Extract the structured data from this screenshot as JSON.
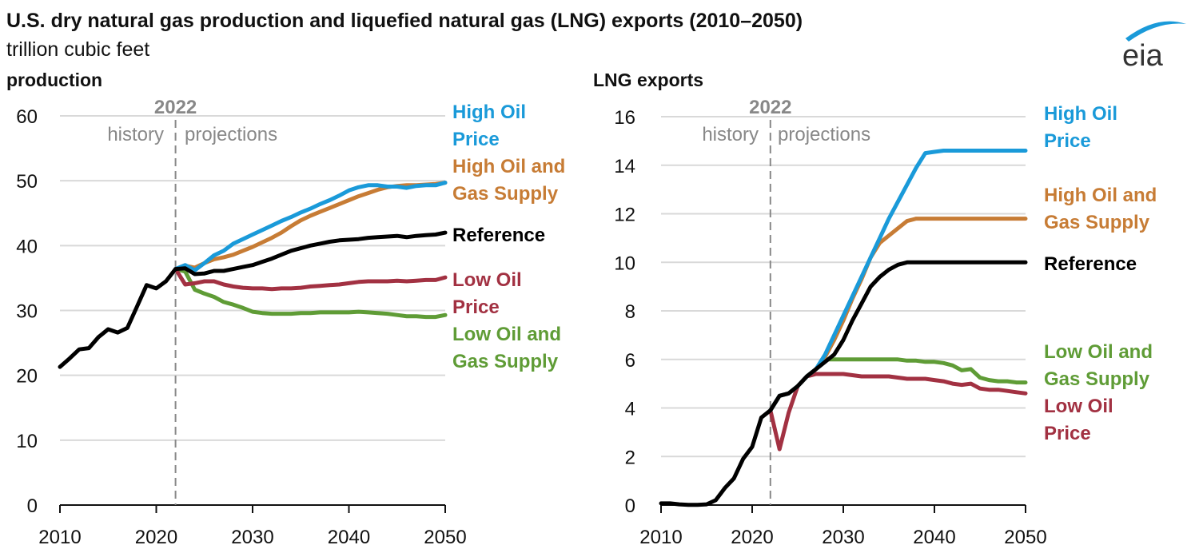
{
  "title": "U.S. dry natural gas production and liquefied natural gas (LNG) exports (2010–2050)",
  "subtitle": "trillion cubic feet",
  "logo": {
    "text": "eia",
    "icon": "eia-logo-icon",
    "arc_color": "#1a9ad9",
    "text_color": "#333333"
  },
  "colors": {
    "Reference": "#000000",
    "High Oil Price": "#1a9ad9",
    "High Oil and Gas Supply": "#c77c35",
    "Low Oil Price": "#a23142",
    "Low Oil and Gas Supply": "#5f9c36",
    "grid": "#d9d9d9",
    "divider": "#888888"
  },
  "chart_data": [
    {
      "type": "line",
      "title": "production",
      "xlabel": "",
      "ylabel": "trillion cubic feet",
      "xlim": [
        2010,
        2050
      ],
      "ylim": [
        0,
        60
      ],
      "x_ticks": [
        2010,
        2020,
        2030,
        2040,
        2050
      ],
      "y_ticks": [
        0,
        10,
        20,
        30,
        40,
        50,
        60
      ],
      "grid": true,
      "divider": {
        "year": 2022,
        "label": "2022",
        "left_label": "history",
        "right_label": "projections"
      },
      "legend_placement": "right (direct labels)",
      "legend": [
        {
          "name": "High Oil Price",
          "lines": [
            "High Oil",
            "Price"
          ]
        },
        {
          "name": "High Oil and Gas Supply",
          "lines": [
            "High Oil and",
            "Gas Supply"
          ]
        },
        {
          "name": "Reference",
          "lines": [
            "Reference"
          ]
        },
        {
          "name": "Low Oil Price",
          "lines": [
            "Low Oil",
            "Price"
          ]
        },
        {
          "name": "Low Oil and Gas Supply",
          "lines": [
            "Low Oil and",
            "Gas Supply"
          ]
        }
      ],
      "series": [
        {
          "name": "Reference",
          "x": [
            2010,
            2011,
            2012,
            2013,
            2014,
            2015,
            2016,
            2017,
            2018,
            2019,
            2020,
            2021,
            2022,
            2023,
            2024,
            2025,
            2026,
            2027,
            2028,
            2029,
            2030,
            2031,
            2032,
            2033,
            2034,
            2035,
            2036,
            2037,
            2038,
            2039,
            2040,
            2041,
            2042,
            2043,
            2044,
            2045,
            2046,
            2047,
            2048,
            2049,
            2050
          ],
          "values": [
            21.3,
            22.6,
            24.0,
            24.2,
            25.9,
            27.1,
            26.6,
            27.3,
            30.6,
            33.9,
            33.4,
            34.5,
            36.4,
            36.5,
            35.6,
            35.7,
            36.1,
            36.1,
            36.4,
            36.7,
            37.0,
            37.5,
            38.0,
            38.6,
            39.2,
            39.6,
            40.0,
            40.3,
            40.6,
            40.8,
            40.9,
            41.0,
            41.2,
            41.3,
            41.4,
            41.5,
            41.3,
            41.5,
            41.6,
            41.7,
            42.0
          ]
        },
        {
          "name": "High Oil Price",
          "x": [
            2022,
            2023,
            2024,
            2025,
            2026,
            2027,
            2028,
            2029,
            2030,
            2031,
            2032,
            2033,
            2034,
            2035,
            2036,
            2037,
            2038,
            2039,
            2040,
            2041,
            2042,
            2043,
            2044,
            2045,
            2046,
            2047,
            2048,
            2049,
            2050
          ],
          "values": [
            36.4,
            37.0,
            36.2,
            37.3,
            38.5,
            39.2,
            40.3,
            41.0,
            41.7,
            42.4,
            43.1,
            43.8,
            44.4,
            45.1,
            45.7,
            46.4,
            47.0,
            47.7,
            48.5,
            49.0,
            49.3,
            49.3,
            49.1,
            49.1,
            48.9,
            49.2,
            49.3,
            49.3,
            49.7
          ]
        },
        {
          "name": "High Oil and Gas Supply",
          "x": [
            2022,
            2023,
            2024,
            2025,
            2026,
            2027,
            2028,
            2029,
            2030,
            2031,
            2032,
            2033,
            2034,
            2035,
            2036,
            2037,
            2038,
            2039,
            2040,
            2041,
            2042,
            2043,
            2044,
            2045,
            2046,
            2047,
            2048,
            2049,
            2050
          ],
          "values": [
            36.4,
            36.9,
            36.6,
            37.3,
            37.9,
            38.2,
            38.6,
            39.2,
            39.8,
            40.5,
            41.2,
            42.0,
            43.0,
            43.9,
            44.6,
            45.2,
            45.8,
            46.4,
            47.0,
            47.6,
            48.1,
            48.6,
            49.0,
            49.2,
            49.3,
            49.3,
            49.4,
            49.5,
            49.7
          ]
        },
        {
          "name": "Low Oil Price",
          "x": [
            2022,
            2023,
            2024,
            2025,
            2026,
            2027,
            2028,
            2029,
            2030,
            2031,
            2032,
            2033,
            2034,
            2035,
            2036,
            2037,
            2038,
            2039,
            2040,
            2041,
            2042,
            2043,
            2044,
            2045,
            2046,
            2047,
            2048,
            2049,
            2050
          ],
          "values": [
            36.4,
            34.0,
            34.2,
            34.5,
            34.5,
            34.0,
            33.7,
            33.5,
            33.4,
            33.4,
            33.3,
            33.4,
            33.4,
            33.5,
            33.7,
            33.8,
            33.9,
            34.0,
            34.2,
            34.4,
            34.5,
            34.5,
            34.5,
            34.6,
            34.5,
            34.6,
            34.7,
            34.7,
            35.1
          ]
        },
        {
          "name": "Low Oil and Gas Supply",
          "x": [
            2022,
            2023,
            2024,
            2025,
            2026,
            2027,
            2028,
            2029,
            2030,
            2031,
            2032,
            2033,
            2034,
            2035,
            2036,
            2037,
            2038,
            2039,
            2040,
            2041,
            2042,
            2043,
            2044,
            2045,
            2046,
            2047,
            2048,
            2049,
            2050
          ],
          "values": [
            36.4,
            36.0,
            33.2,
            32.6,
            32.1,
            31.3,
            30.9,
            30.4,
            29.8,
            29.6,
            29.5,
            29.5,
            29.5,
            29.6,
            29.6,
            29.7,
            29.7,
            29.7,
            29.7,
            29.8,
            29.7,
            29.6,
            29.5,
            29.3,
            29.1,
            29.1,
            29.0,
            29.0,
            29.3
          ]
        }
      ]
    },
    {
      "type": "line",
      "title": "LNG exports",
      "xlabel": "",
      "ylabel": "trillion cubic feet",
      "xlim": [
        2010,
        2050
      ],
      "ylim": [
        0,
        16
      ],
      "x_ticks": [
        2010,
        2020,
        2030,
        2040,
        2050
      ],
      "y_ticks": [
        0,
        2,
        4,
        6,
        8,
        10,
        12,
        14,
        16
      ],
      "grid": true,
      "divider": {
        "year": 2022,
        "label": "2022",
        "left_label": "history",
        "right_label": "projections"
      },
      "legend_placement": "right (direct labels)",
      "legend": [
        {
          "name": "High Oil Price",
          "lines": [
            "High Oil",
            "Price"
          ]
        },
        {
          "name": "High Oil and Gas Supply",
          "lines": [
            "High Oil and",
            "Gas Supply"
          ]
        },
        {
          "name": "Reference",
          "lines": [
            "Reference"
          ]
        },
        {
          "name": "Low Oil and Gas Supply",
          "lines": [
            "Low Oil and",
            "Gas Supply"
          ]
        },
        {
          "name": "Low Oil Price",
          "lines": [
            "Low Oil",
            "Price"
          ]
        }
      ],
      "series": [
        {
          "name": "Reference",
          "x": [
            2010,
            2011,
            2012,
            2013,
            2014,
            2015,
            2016,
            2017,
            2018,
            2019,
            2020,
            2021,
            2022,
            2023,
            2024,
            2025,
            2026,
            2027,
            2028,
            2029,
            2030,
            2031,
            2032,
            2033,
            2034,
            2035,
            2036,
            2037,
            2038,
            2039,
            2040,
            2041,
            2042,
            2043,
            2044,
            2045,
            2046,
            2047,
            2048,
            2049,
            2050
          ],
          "values": [
            0.07,
            0.07,
            0.03,
            0.01,
            0.01,
            0.03,
            0.2,
            0.7,
            1.1,
            1.9,
            2.4,
            3.6,
            3.9,
            4.5,
            4.6,
            4.9,
            5.3,
            5.6,
            5.9,
            6.2,
            6.8,
            7.6,
            8.3,
            9.0,
            9.4,
            9.7,
            9.9,
            10.0,
            10.0,
            10.0,
            10.0,
            10.0,
            10.0,
            10.0,
            10.0,
            10.0,
            10.0,
            10.0,
            10.0,
            10.0,
            10.0
          ]
        },
        {
          "name": "High Oil Price",
          "x": [
            2022,
            2023,
            2024,
            2025,
            2026,
            2027,
            2028,
            2029,
            2030,
            2031,
            2032,
            2033,
            2034,
            2035,
            2036,
            2037,
            2038,
            2039,
            2040,
            2041,
            2042,
            2043,
            2044,
            2045,
            2046,
            2047,
            2048,
            2049,
            2050
          ],
          "values": [
            3.9,
            4.5,
            4.6,
            4.9,
            5.3,
            5.6,
            6.2,
            7.0,
            7.8,
            8.6,
            9.4,
            10.2,
            11.0,
            11.8,
            12.5,
            13.2,
            13.9,
            14.5,
            14.55,
            14.6,
            14.6,
            14.6,
            14.6,
            14.6,
            14.6,
            14.6,
            14.6,
            14.6,
            14.6
          ]
        },
        {
          "name": "High Oil and Gas Supply",
          "x": [
            2022,
            2023,
            2024,
            2025,
            2026,
            2027,
            2028,
            2029,
            2030,
            2031,
            2032,
            2033,
            2034,
            2035,
            2036,
            2037,
            2038,
            2039,
            2040,
            2041,
            2042,
            2043,
            2044,
            2045,
            2046,
            2047,
            2048,
            2049,
            2050
          ],
          "values": [
            3.9,
            4.5,
            4.6,
            4.9,
            5.3,
            5.6,
            6.1,
            6.8,
            7.6,
            8.5,
            9.3,
            10.2,
            10.8,
            11.1,
            11.4,
            11.7,
            11.8,
            11.8,
            11.8,
            11.8,
            11.8,
            11.8,
            11.8,
            11.8,
            11.8,
            11.8,
            11.8,
            11.8,
            11.8
          ]
        },
        {
          "name": "Low Oil Price",
          "x": [
            2022,
            2023,
            2024,
            2025,
            2026,
            2027,
            2028,
            2029,
            2030,
            2031,
            2032,
            2033,
            2034,
            2035,
            2036,
            2037,
            2038,
            2039,
            2040,
            2041,
            2042,
            2043,
            2044,
            2045,
            2046,
            2047,
            2048,
            2049,
            2050
          ],
          "values": [
            3.9,
            2.3,
            3.8,
            4.9,
            5.3,
            5.4,
            5.4,
            5.4,
            5.4,
            5.35,
            5.3,
            5.3,
            5.3,
            5.3,
            5.25,
            5.2,
            5.2,
            5.2,
            5.15,
            5.1,
            5.0,
            4.95,
            5.0,
            4.8,
            4.75,
            4.75,
            4.7,
            4.65,
            4.6
          ]
        },
        {
          "name": "Low Oil and Gas Supply",
          "x": [
            2022,
            2023,
            2024,
            2025,
            2026,
            2027,
            2028,
            2029,
            2030,
            2031,
            2032,
            2033,
            2034,
            2035,
            2036,
            2037,
            2038,
            2039,
            2040,
            2041,
            2042,
            2043,
            2044,
            2045,
            2046,
            2047,
            2048,
            2049,
            2050
          ],
          "values": [
            3.9,
            4.5,
            4.6,
            4.9,
            5.3,
            5.6,
            6.0,
            6.0,
            6.0,
            6.0,
            6.0,
            6.0,
            6.0,
            6.0,
            6.0,
            5.95,
            5.95,
            5.9,
            5.9,
            5.85,
            5.75,
            5.55,
            5.6,
            5.25,
            5.15,
            5.1,
            5.1,
            5.05,
            5.05
          ]
        }
      ]
    }
  ]
}
